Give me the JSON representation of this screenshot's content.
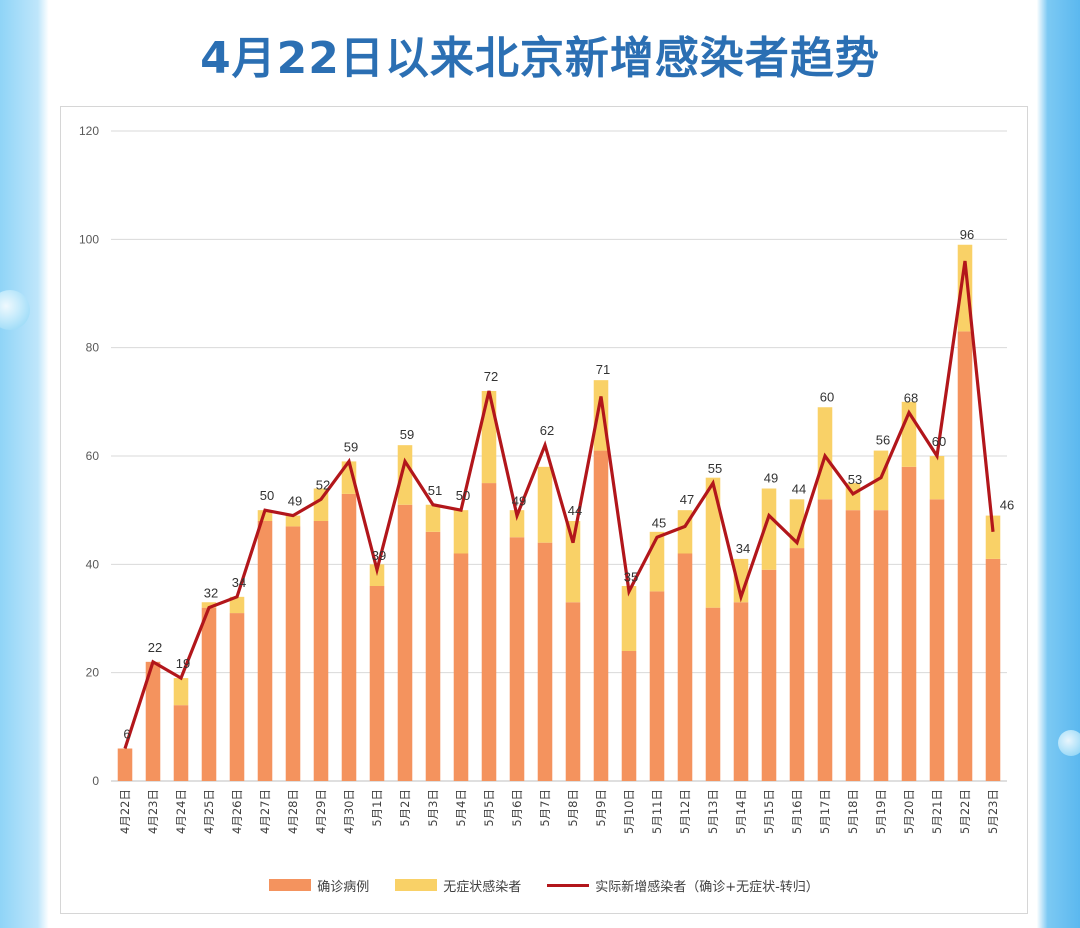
{
  "page": {
    "title": "4月22日以来北京新增感染者趋势"
  },
  "legend": {
    "confirmed": "确诊病例",
    "asymptomatic": "无症状感染者",
    "actual": "实际新增感染者（确诊+无症状-转归）"
  },
  "colors": {
    "confirmed": "#f4935e",
    "asymptomatic": "#f9d167",
    "actual": "#b2161b",
    "title": "#2b6fb3",
    "grid": "#d9d9d9",
    "axis_text": "#595959"
  },
  "chart_data": {
    "type": "bar",
    "title": "4月22日以来北京新增感染者趋势",
    "ylim": [
      0,
      120
    ],
    "yticks": [
      0,
      20,
      40,
      60,
      80,
      100,
      120
    ],
    "grid": true,
    "legend_position": "bottom",
    "categories": [
      "4月22日",
      "4月23日",
      "4月24日",
      "4月25日",
      "4月26日",
      "4月27日",
      "4月28日",
      "4月29日",
      "4月30日",
      "5月1日",
      "5月2日",
      "5月3日",
      "5月4日",
      "5月5日",
      "5月6日",
      "5月7日",
      "5月8日",
      "5月9日",
      "5月10日",
      "5月11日",
      "5月12日",
      "5月13日",
      "5月14日",
      "5月15日",
      "5月16日",
      "5月17日",
      "5月18日",
      "5月19日",
      "5月20日",
      "5月21日",
      "5月22日",
      "5月23日"
    ],
    "series": [
      {
        "name": "确诊病例",
        "type": "bar",
        "values": [
          6,
          22,
          14,
          32,
          31,
          48,
          47,
          48,
          53,
          36,
          51,
          46,
          42,
          55,
          45,
          44,
          33,
          61,
          24,
          35,
          42,
          32,
          33,
          39,
          43,
          52,
          50,
          50,
          58,
          52,
          83,
          41
        ]
      },
      {
        "name": "无症状感染者",
        "type": "bar",
        "values": [
          0,
          0,
          5,
          1,
          3,
          2,
          2,
          6,
          6,
          4,
          11,
          5,
          8,
          17,
          5,
          14,
          15,
          13,
          12,
          11,
          8,
          24,
          8,
          15,
          9,
          17,
          5,
          11,
          12,
          8,
          16,
          8
        ]
      },
      {
        "name": "实际新增感染者（确诊+无症状-转归）",
        "type": "line",
        "values": [
          6,
          22,
          19,
          32,
          34,
          50,
          49,
          52,
          59,
          39,
          59,
          51,
          50,
          72,
          49,
          62,
          44,
          71,
          35,
          45,
          47,
          55,
          34,
          49,
          44,
          60,
          53,
          56,
          68,
          60,
          96,
          46
        ]
      }
    ]
  }
}
